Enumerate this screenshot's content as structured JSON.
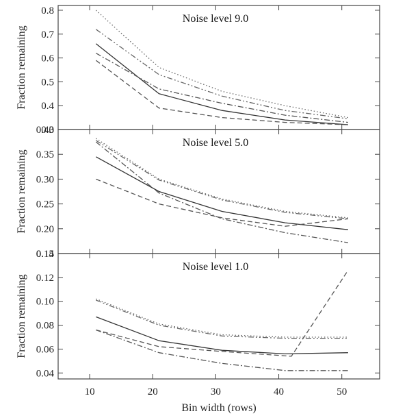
{
  "chart_data": [
    {
      "type": "line",
      "title": "Noise level 9.0",
      "ylabel": "Fraction remaining",
      "xlabel": "",
      "xlim": [
        5,
        56
      ],
      "ylim": [
        0.3,
        0.82
      ],
      "yticks": [
        0.3,
        0.4,
        0.5,
        0.6,
        0.7,
        0.8
      ],
      "ytick_labels": [
        "0.3",
        "0.4",
        "0.5",
        "0.6",
        "0.7",
        "0.8"
      ],
      "xticks": [
        10,
        20,
        30,
        40,
        50
      ],
      "x": [
        11,
        21,
        31,
        41,
        51
      ],
      "series": [
        {
          "values": [
            0.66,
            0.45,
            0.38,
            0.34,
            0.32
          ],
          "style": "solid"
        },
        {
          "values": [
            0.59,
            0.39,
            0.35,
            0.33,
            0.32
          ],
          "style": "dashed"
        },
        {
          "values": [
            0.62,
            0.47,
            0.41,
            0.36,
            0.33
          ],
          "style": "dashdot"
        },
        {
          "values": [
            0.72,
            0.53,
            0.44,
            0.38,
            0.345
          ],
          "style": "dashdotdot"
        },
        {
          "values": [
            0.8,
            0.56,
            0.46,
            0.4,
            0.35
          ],
          "style": "dotted"
        }
      ]
    },
    {
      "type": "line",
      "title": "Noise level 5.0",
      "ylabel": "Fraction remaining",
      "xlabel": "",
      "xlim": [
        5,
        56
      ],
      "ylim": [
        0.15,
        0.4
      ],
      "yticks": [
        0.15,
        0.2,
        0.25,
        0.3,
        0.35,
        0.4
      ],
      "ytick_labels": [
        "0.15",
        "0.20",
        "0.25",
        "0.30",
        "0.35",
        "0.40"
      ],
      "xticks": [
        10,
        20,
        30,
        40,
        50
      ],
      "x": [
        11,
        21,
        31,
        41,
        51
      ],
      "series": [
        {
          "values": [
            0.345,
            0.275,
            0.235,
            0.212,
            0.198
          ],
          "style": "solid"
        },
        {
          "values": [
            0.3,
            0.25,
            0.222,
            0.205,
            0.22
          ],
          "style": "dashed"
        },
        {
          "values": [
            0.375,
            0.272,
            0.22,
            0.192,
            0.172
          ],
          "style": "dashdot"
        },
        {
          "values": [
            0.378,
            0.298,
            0.258,
            0.233,
            0.22
          ],
          "style": "dashdotdot"
        },
        {
          "values": [
            0.382,
            0.3,
            0.26,
            0.235,
            0.222
          ],
          "style": "dotted"
        }
      ]
    },
    {
      "type": "line",
      "title": "Noise level 1.0",
      "ylabel": "Fraction remaining",
      "xlabel": "Bin width (rows)",
      "xlim": [
        5,
        56
      ],
      "ylim": [
        0.035,
        0.14
      ],
      "yticks": [
        0.04,
        0.06,
        0.08,
        0.1,
        0.12,
        0.14
      ],
      "ytick_labels": [
        "0.04",
        "0.06",
        "0.08",
        "0.10",
        "0.12",
        "0.14"
      ],
      "xticks": [
        10,
        20,
        30,
        40,
        50
      ],
      "xtick_labels": [
        "10",
        "20",
        "30",
        "40",
        "50"
      ],
      "x": [
        11,
        21,
        31,
        41,
        51
      ],
      "series": [
        {
          "values": [
            0.087,
            0.067,
            0.059,
            0.056,
            0.057
          ],
          "style": "solid"
        },
        {
          "x": [
            11,
            21,
            31,
            42,
            51
          ],
          "values": [
            0.076,
            0.062,
            0.058,
            0.054,
            0.126
          ],
          "style": "dashed"
        },
        {
          "values": [
            0.076,
            0.057,
            0.048,
            0.042,
            0.042
          ],
          "style": "dashdot"
        },
        {
          "values": [
            0.101,
            0.08,
            0.071,
            0.069,
            0.069
          ],
          "style": "dashdotdot"
        },
        {
          "values": [
            0.102,
            0.081,
            0.072,
            0.07,
            0.07
          ],
          "style": "dotted"
        }
      ]
    }
  ]
}
